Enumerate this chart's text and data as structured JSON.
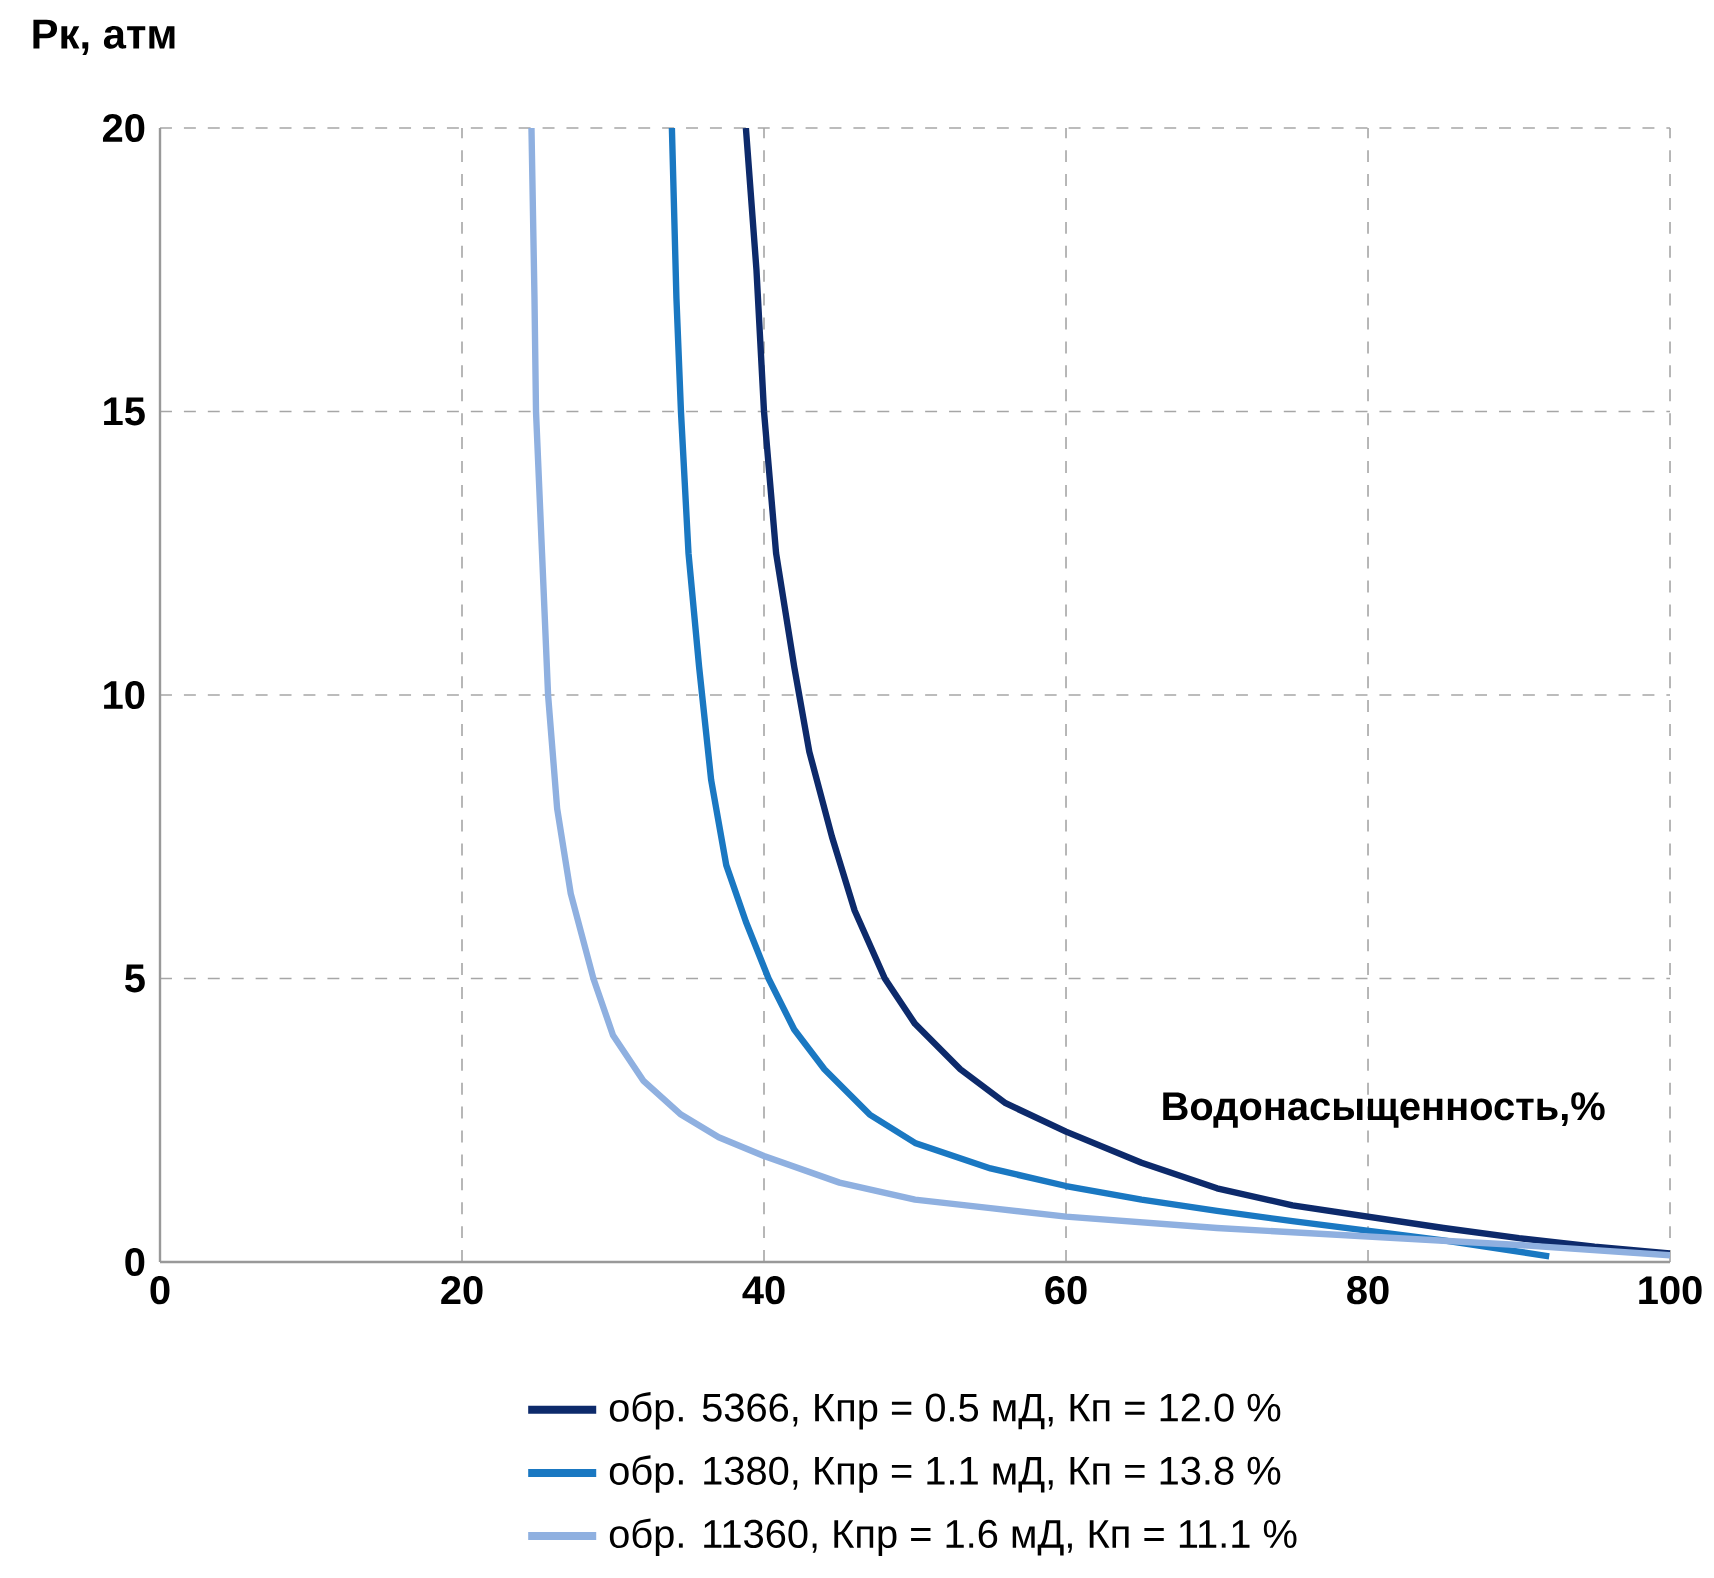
{
  "chart_data": {
    "type": "line",
    "xlabel": "Водонасыщенность,%",
    "ylabel": "Рк, атм",
    "xlim": [
      0,
      100
    ],
    "ylim": [
      0,
      20
    ],
    "xticks": [
      0,
      20,
      40,
      60,
      80,
      100
    ],
    "yticks": [
      0,
      5,
      10,
      15,
      20
    ],
    "grid": true,
    "legend": "bottom",
    "line_style": "solid",
    "series": [
      {
        "name": "обр. 5366, Кпр = 0.5 мД, Кп = 12.0 %",
        "color": "#0d2a6b",
        "x": [
          38.8,
          39.5,
          40,
          40.8,
          42,
          43,
          44.5,
          46,
          48,
          50,
          53,
          56,
          60,
          65,
          70,
          75,
          80,
          85,
          90,
          95,
          100
        ],
        "values": [
          20,
          17.5,
          15,
          12.5,
          10.5,
          9,
          7.5,
          6.2,
          5,
          4.2,
          3.4,
          2.8,
          2.3,
          1.75,
          1.3,
          1.0,
          0.8,
          0.6,
          0.42,
          0.27,
          0.15
        ]
      },
      {
        "name": "обр. 1380, Кпр = 1.1 мД, Кп = 13.8 %",
        "color": "#1a78c2",
        "x": [
          33.9,
          34.2,
          34.5,
          35,
          35.7,
          36.5,
          37.5,
          38.8,
          40.3,
          42,
          44,
          47,
          50,
          55,
          60,
          65,
          70,
          75,
          80,
          85,
          92
        ],
        "values": [
          20,
          17,
          15,
          12.5,
          10.5,
          8.5,
          7,
          6,
          5,
          4.1,
          3.4,
          2.6,
          2.1,
          1.65,
          1.34,
          1.1,
          0.9,
          0.72,
          0.55,
          0.38,
          0.1
        ]
      },
      {
        "name": "обр. 11360, Кпр = 1.6 мД, Кп = 11.1 %",
        "color": "#8fb0e0",
        "x": [
          24.6,
          24.8,
          24.9,
          25.3,
          25.7,
          26.3,
          27.2,
          28.7,
          30,
          32,
          34.5,
          37,
          40,
          45,
          50,
          55,
          60,
          70,
          80,
          90,
          100
        ],
        "values": [
          20,
          17,
          15,
          12.5,
          10,
          8,
          6.5,
          5,
          4,
          3.2,
          2.6,
          2.2,
          1.87,
          1.4,
          1.1,
          0.95,
          0.8,
          0.6,
          0.45,
          0.3,
          0.12
        ]
      }
    ]
  }
}
